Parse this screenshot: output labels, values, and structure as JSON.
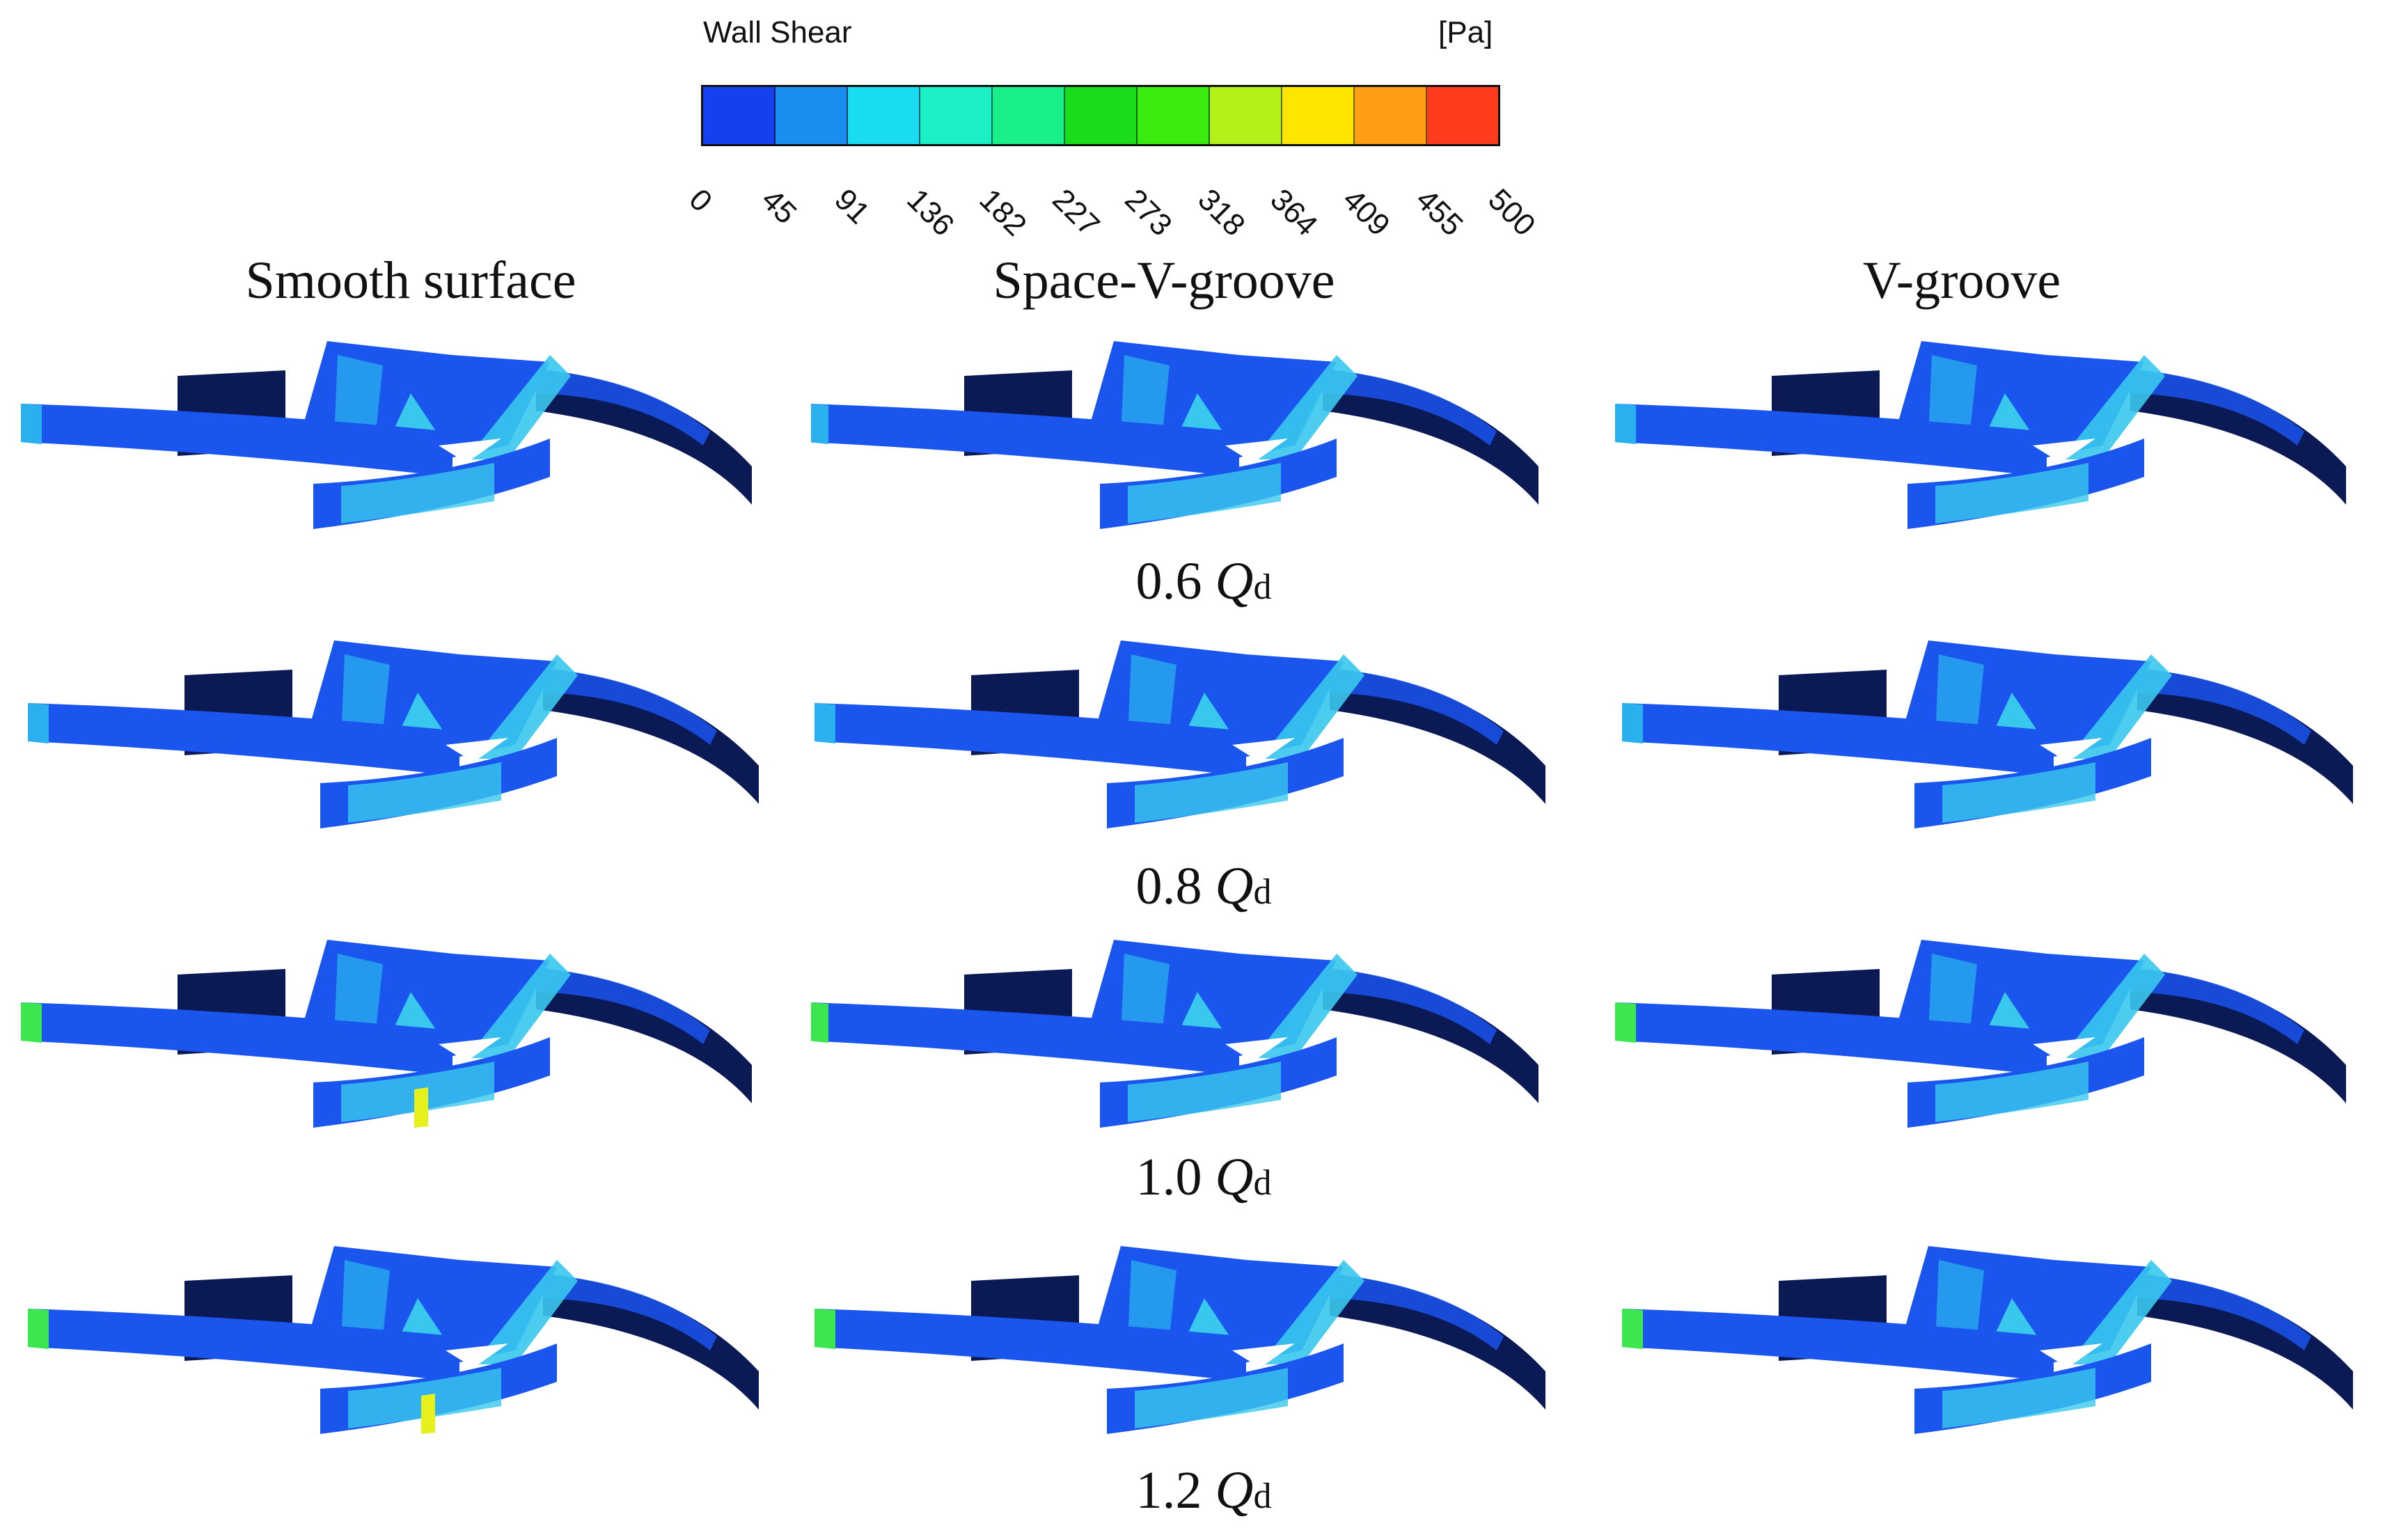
{
  "legend": {
    "title": "Wall Shear",
    "unit": "[Pa]",
    "ticks": [
      "0",
      "45",
      "91",
      "136",
      "182",
      "227",
      "273",
      "318",
      "364",
      "409",
      "455",
      "500"
    ],
    "colors": [
      "#1440ee",
      "#1a8ff0",
      "#1adcf0",
      "#1af0c3",
      "#1af089",
      "#1adc1a",
      "#3aeb10",
      "#b4f01a",
      "#ffe600",
      "#ffa014",
      "#ff3c1e"
    ]
  },
  "columns": [
    {
      "label": "Smooth surface"
    },
    {
      "label": "Space-V-groove"
    },
    {
      "label": "V-groove"
    }
  ],
  "rows": [
    {
      "value": "0.6",
      "symbol": "Q",
      "subscript": "d"
    },
    {
      "value": "0.8",
      "symbol": "Q",
      "subscript": "d"
    },
    {
      "value": "1.0",
      "symbol": "Q",
      "subscript": "d"
    },
    {
      "value": "1.2",
      "symbol": "Q",
      "subscript": "d"
    }
  ],
  "palette": {
    "base_blue": "#1a55ee",
    "dark_navy": "#0b1a55",
    "light_cyan": "#38c8ee",
    "mid_cyan": "#2ab0ee",
    "green": "#3ce650",
    "yellow": "#e6f01a"
  }
}
